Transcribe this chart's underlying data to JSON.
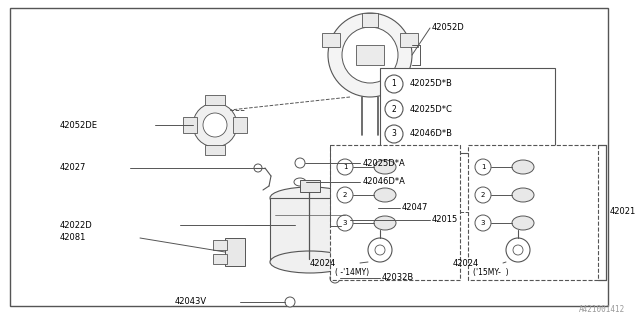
{
  "bg_color": "#ffffff",
  "line_color": "#555555",
  "footer_text": "A421001412",
  "legend_items": [
    {
      "num": "1",
      "code": "42025D*B"
    },
    {
      "num": "2",
      "code": "42025D*C"
    },
    {
      "num": "3",
      "code": "42046D*B"
    }
  ]
}
